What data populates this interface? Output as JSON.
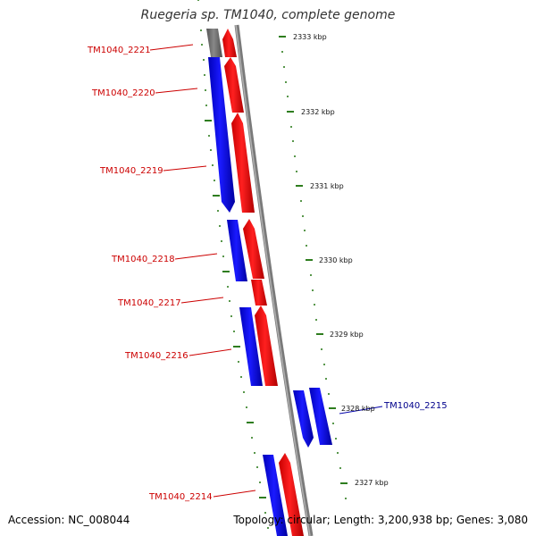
{
  "title": "Ruegeria sp. TM1040, complete genome",
  "accession": "Accession: NC_008044",
  "summary": "Topology: circular; Length: 3,200,938 bp; Genes: 3,080",
  "colors": {
    "backbone": "#8a8a8a",
    "forward_gene": "#ff0000",
    "reverse_gene": "#0000ff",
    "partial_gene": "#707070",
    "tick": "#2e7d1e",
    "label_forward": "#cc0000",
    "label_reverse": "#00008b"
  },
  "gene_labels": [
    {
      "id": "TM1040_2221"
    },
    {
      "id": "TM1040_2220"
    },
    {
      "id": "TM1040_2219"
    },
    {
      "id": "TM1040_2218"
    },
    {
      "id": "TM1040_2217"
    },
    {
      "id": "TM1040_2216"
    },
    {
      "id": "TM1040_2215"
    },
    {
      "id": "TM1040_2214"
    }
  ],
  "scale_labels": [
    "2333 kbp",
    "2332 kbp",
    "2331 kbp",
    "2330 kbp",
    "2329 kbp",
    "2328 kbp",
    "2327 kbp"
  ]
}
